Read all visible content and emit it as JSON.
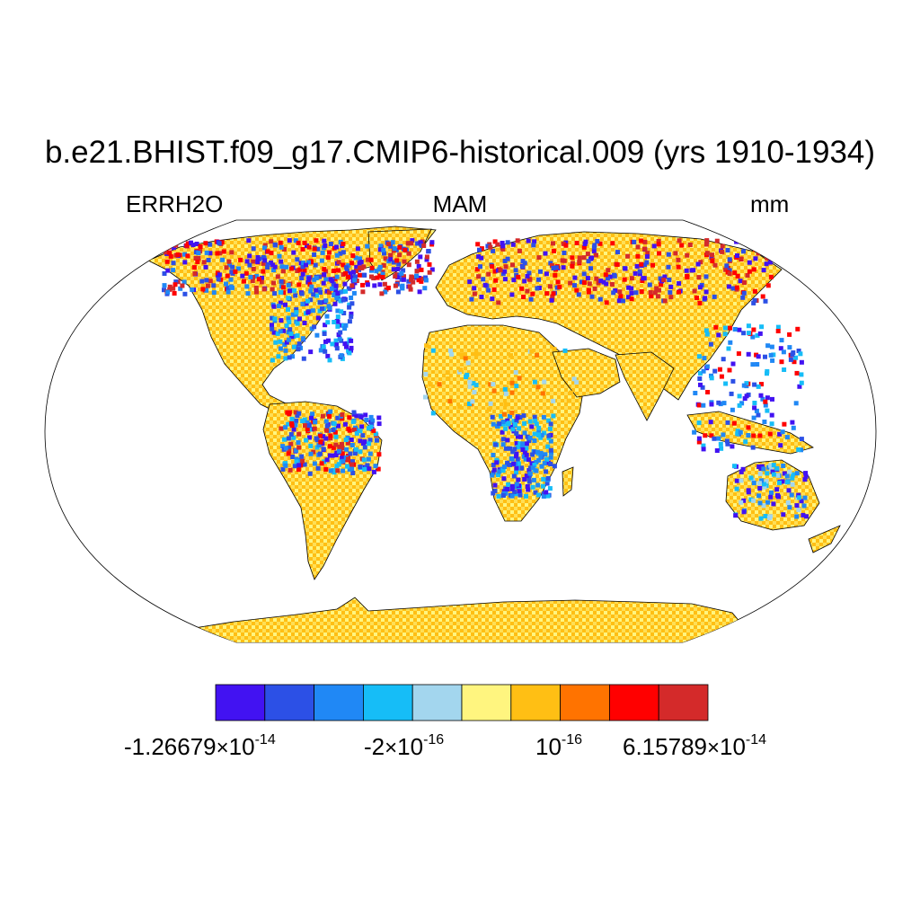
{
  "title": "b.e21.BHIST.f09_g17.CMIP6-historical.009 (yrs 1910-1934)",
  "subtitle_left": "ERRH2O",
  "subtitle_center": "MAM",
  "subtitle_right": "mm",
  "colorbar": {
    "colors": [
      "#4212f2",
      "#2c50e6",
      "#2088f5",
      "#16bdf7",
      "#a3d6ee",
      "#fff57f",
      "#ffbf14",
      "#ff7300",
      "#ff0000",
      "#d42a2a"
    ],
    "labels": [
      {
        "mantissa": "-1.26679",
        "exponent": "-14"
      },
      {
        "mantissa": "-2",
        "exponent": "-16"
      },
      {
        "mantissa": "",
        "exponent": "-16"
      },
      {
        "mantissa": "6.15789",
        "exponent": "-14"
      }
    ],
    "base": "10",
    "times_symbol": "×"
  },
  "map": {
    "projection": "Robinson",
    "land_base_color": "#ffbf14",
    "land_light_color": "#fff57f",
    "ocean_color": "#ffffff"
  }
}
